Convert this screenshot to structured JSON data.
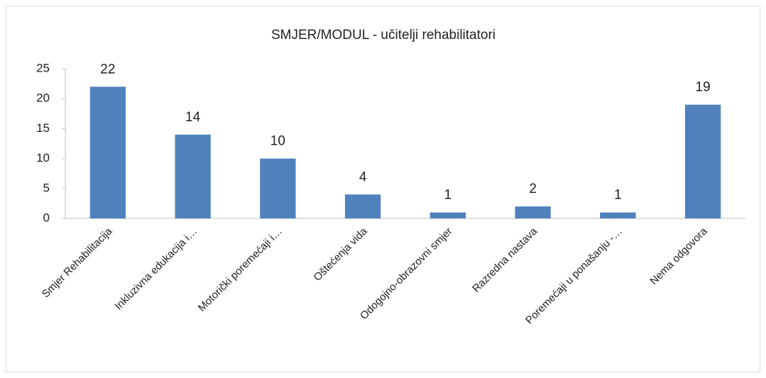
{
  "chart_data": {
    "type": "bar",
    "title": "SMJER/MODUL - učitelji rehabilitatori",
    "categories": [
      "Smjer Rehabilitacija",
      "Inkluzivna edukacija i…",
      "Motorički poremećaji i…",
      "Oštećenja vida",
      "Odogojno-obrazovni smjer",
      "Razredna nastava",
      "Poremećaji u ponašanju -…",
      "Nema odgovora"
    ],
    "values": [
      22,
      14,
      10,
      4,
      1,
      2,
      1,
      19
    ],
    "color": "#4f81bd",
    "ylim": [
      0,
      25
    ],
    "yticks": [
      0,
      5,
      10,
      15,
      20,
      25
    ],
    "grid": false
  }
}
